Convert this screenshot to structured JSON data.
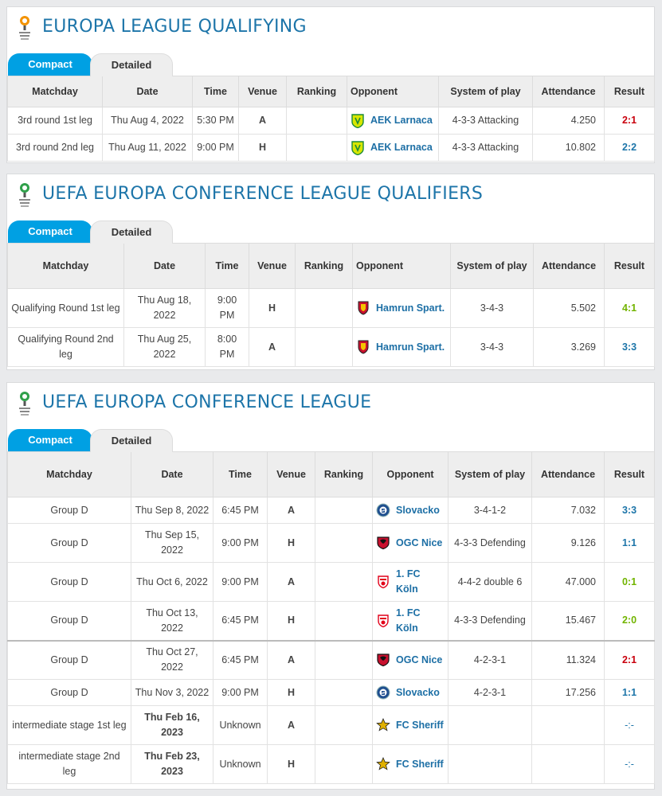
{
  "colors": {
    "accent": "#00a0e3",
    "title": "#1d75a9",
    "win": "#72b400",
    "draw": "#1d75a9",
    "loss": "#c9000d"
  },
  "sections": [
    {
      "title": "EUROPA LEAGUE QUALIFYING",
      "tabs": [
        "Compact",
        "Detailed"
      ],
      "headers": [
        "Matchday",
        "Date",
        "Time",
        "Venue",
        "Ranking",
        "Opponent",
        "System of play",
        "Attendance",
        "Result"
      ],
      "rows": [
        {
          "matchday": "3rd round 1st leg",
          "date": "Thu Aug 4, 2022",
          "time": "5:30 PM",
          "venue": "A",
          "ranking": "",
          "opponent": "AEK Larnaca",
          "crest": "aek-larnaca",
          "system": "4-3-3 Attacking",
          "attendance": "4.250",
          "result": "2:1",
          "outcome": "loss"
        },
        {
          "matchday": "3rd round 2nd leg",
          "date": "Thu Aug 11, 2022",
          "time": "9:00 PM",
          "venue": "H",
          "ranking": "",
          "opponent": "AEK Larnaca",
          "crest": "aek-larnaca",
          "system": "4-3-3 Attacking",
          "attendance": "10.802",
          "result": "2:2",
          "outcome": "draw"
        }
      ]
    },
    {
      "title": "UEFA EUROPA CONFERENCE LEAGUE QUALIFIERS",
      "tabs": [
        "Compact",
        "Detailed"
      ],
      "headers": [
        "Matchday",
        "Date",
        "Time",
        "Venue",
        "Ranking",
        "Opponent",
        "System of play",
        "Attendance",
        "Result"
      ],
      "rows": [
        {
          "matchday": "Qualifying Round 1st leg",
          "date": "Thu Aug 18, 2022",
          "time": "9:00 PM",
          "venue": "H",
          "ranking": "",
          "opponent": "Hamrun Spart.",
          "crest": "hamrun",
          "system": "3-4-3",
          "attendance": "5.502",
          "result": "4:1",
          "outcome": "win"
        },
        {
          "matchday": "Qualifying Round 2nd leg",
          "date": "Thu Aug 25, 2022",
          "time": "8:00 PM",
          "venue": "A",
          "ranking": "",
          "opponent": "Hamrun Spart.",
          "crest": "hamrun",
          "system": "3-4-3",
          "attendance": "3.269",
          "result": "3:3",
          "outcome": "draw"
        }
      ]
    },
    {
      "title": "UEFA EUROPA CONFERENCE LEAGUE",
      "tabs": [
        "Compact",
        "Detailed"
      ],
      "headers": [
        "Matchday",
        "Date",
        "Time",
        "Venue",
        "Ranking",
        "Opponent",
        "System of play",
        "Attendance",
        "Result"
      ],
      "rows": [
        {
          "matchday": "Group D",
          "date": "Thu Sep 8, 2022",
          "time": "6:45 PM",
          "venue": "A",
          "ranking": "",
          "opponent": "Slovacko",
          "crest": "slovacko",
          "system": "3-4-1-2",
          "attendance": "7.032",
          "result": "3:3",
          "outcome": "draw"
        },
        {
          "matchday": "Group D",
          "date": "Thu Sep 15, 2022",
          "time": "9:00 PM",
          "venue": "H",
          "ranking": "",
          "opponent": "OGC Nice",
          "crest": "nice",
          "system": "4-3-3 Defending",
          "attendance": "9.126",
          "result": "1:1",
          "outcome": "draw"
        },
        {
          "matchday": "Group D",
          "date": "Thu Oct 6, 2022",
          "time": "9:00 PM",
          "venue": "A",
          "ranking": "",
          "opponent": "1. FC Köln",
          "crest": "koeln",
          "system": "4-4-2 double 6",
          "attendance": "47.000",
          "result": "0:1",
          "outcome": "win"
        },
        {
          "matchday": "Group D",
          "date": "Thu Oct 13, 2022",
          "time": "6:45 PM",
          "venue": "H",
          "ranking": "",
          "opponent": "1. FC Köln",
          "crest": "koeln",
          "system": "4-3-3 Defending",
          "attendance": "15.467",
          "result": "2:0",
          "outcome": "win"
        },
        {
          "matchday": "Group D",
          "date": "Thu Oct 27, 2022",
          "time": "6:45 PM",
          "venue": "A",
          "ranking": "",
          "opponent": "OGC Nice",
          "crest": "nice",
          "system": "4-2-3-1",
          "attendance": "11.324",
          "result": "2:1",
          "outcome": "loss"
        },
        {
          "matchday": "Group D",
          "date": "Thu Nov 3, 2022",
          "time": "9:00 PM",
          "venue": "H",
          "ranking": "",
          "opponent": "Slovacko",
          "crest": "slovacko",
          "system": "4-2-3-1",
          "attendance": "17.256",
          "result": "1:1",
          "outcome": "draw"
        },
        {
          "matchday": "intermediate stage 1st leg",
          "date": "Thu Feb 16, 2023",
          "dateBold": true,
          "time": "Unknown",
          "venue": "A",
          "ranking": "",
          "opponent": "FC Sheriff",
          "crest": "sheriff",
          "system": "",
          "attendance": "",
          "result": "-:-",
          "outcome": "draw"
        },
        {
          "matchday": "intermediate stage 2nd leg",
          "date": "Thu Feb 23, 2023",
          "dateBold": true,
          "time": "Unknown",
          "venue": "H",
          "ranking": "",
          "opponent": "FC Sheriff",
          "crest": "sheriff",
          "system": "",
          "attendance": "",
          "result": "-:-",
          "outcome": "draw"
        }
      ]
    }
  ]
}
